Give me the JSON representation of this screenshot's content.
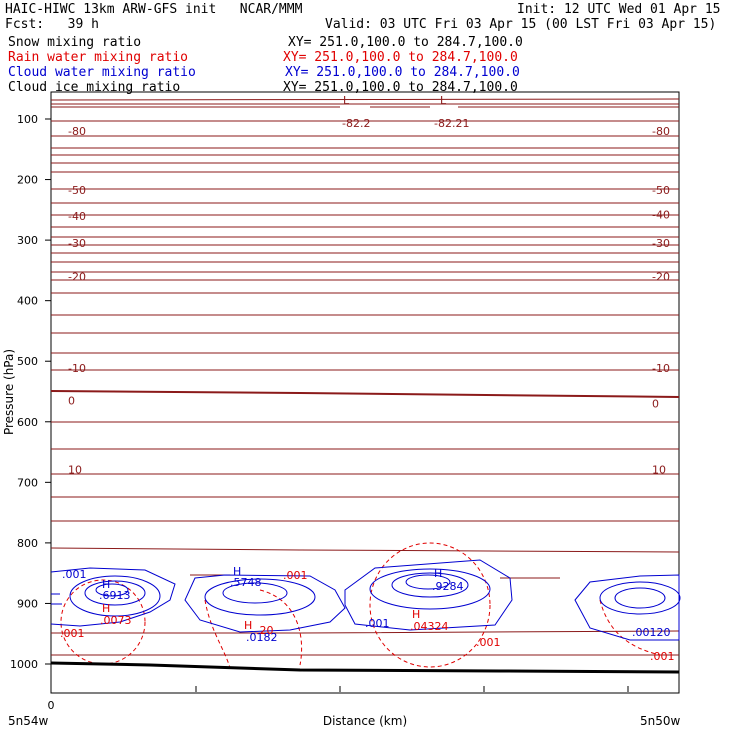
{
  "header": {
    "title": "HAIC-HIWC 13km ARW-GFS init   NCAR/MMM",
    "init": "Init: 12 UTC Wed 01 Apr 15",
    "fcst": "Fcst:   39 h",
    "valid": "Valid: 03 UTC Fri 03 Apr 15 (00 LST Fri 03 Apr 15)",
    "fields": [
      {
        "label": "Snow mixing ratio",
        "xy": "XY= 251.0,100.0 to 284.7,100.0",
        "color": "#000000"
      },
      {
        "label": "Rain water mixing ratio",
        "xy": "XY= 251.0,100.0 to 284.7,100.0",
        "color": "#e00000"
      },
      {
        "label": "Cloud water mixing ratio",
        "xy": "XY= 251.0,100.0 to 284.7,100.0",
        "color": "#0000d0"
      },
      {
        "label": "Cloud ice mixing ratio",
        "xy": "XY= 251.0,100.0 to 284.7,100.0",
        "color": "#000000"
      }
    ]
  },
  "chart_data": {
    "type": "contour",
    "ylabel": "Pressure (hPa)",
    "xlabel": "Distance (km)",
    "x_ticks": [
      "0"
    ],
    "x_endpoints": [
      "5n54w",
      "5n50w"
    ],
    "y_ticks": [
      100,
      200,
      300,
      400,
      500,
      600,
      700,
      800,
      900,
      1000
    ],
    "temperature_labels": [
      {
        "value": "-80",
        "side": "left",
        "p": 120
      },
      {
        "value": "-80",
        "side": "right",
        "p": 120
      },
      {
        "value": "-82.2",
        "side": "mid",
        "p": 107
      },
      {
        "value": "-82.21",
        "side": "mid2",
        "p": 107
      },
      {
        "value": "-50",
        "side": "left",
        "p": 217
      },
      {
        "value": "-50",
        "side": "right",
        "p": 217
      },
      {
        "value": "-40",
        "side": "left",
        "p": 260
      },
      {
        "value": "-40",
        "side": "right",
        "p": 258
      },
      {
        "value": "-30",
        "side": "left",
        "p": 305
      },
      {
        "value": "-30",
        "side": "right",
        "p": 305
      },
      {
        "value": "-20",
        "side": "left",
        "p": 360
      },
      {
        "value": "-20",
        "side": "right",
        "p": 360
      },
      {
        "value": "-10",
        "side": "left",
        "p": 511
      },
      {
        "value": "-10",
        "side": "right",
        "p": 511
      },
      {
        "value": "0",
        "side": "left",
        "p": 565
      },
      {
        "value": "0",
        "side": "right",
        "p": 570
      },
      {
        "value": "10",
        "side": "left",
        "p": 679
      },
      {
        "value": "10",
        "side": "right",
        "p": 679
      }
    ],
    "low_markers": [
      "L",
      "L"
    ],
    "high_markers": [
      "H",
      "H",
      "H",
      "H",
      "H",
      "H"
    ],
    "value_labels": {
      "cloud_water": [
        ".001",
        ".6913",
        ".5748",
        ".9284",
        ".001",
        ".00120",
        ".0182"
      ],
      "rain": [
        ".0073",
        ".001",
        ".04324",
        ".001",
        ".001",
        ".001",
        ".20"
      ]
    },
    "colors": {
      "temperature": "#8b1a1a",
      "rain": "#e00000",
      "cloud_water": "#0000d0",
      "ground": "#000000"
    }
  }
}
